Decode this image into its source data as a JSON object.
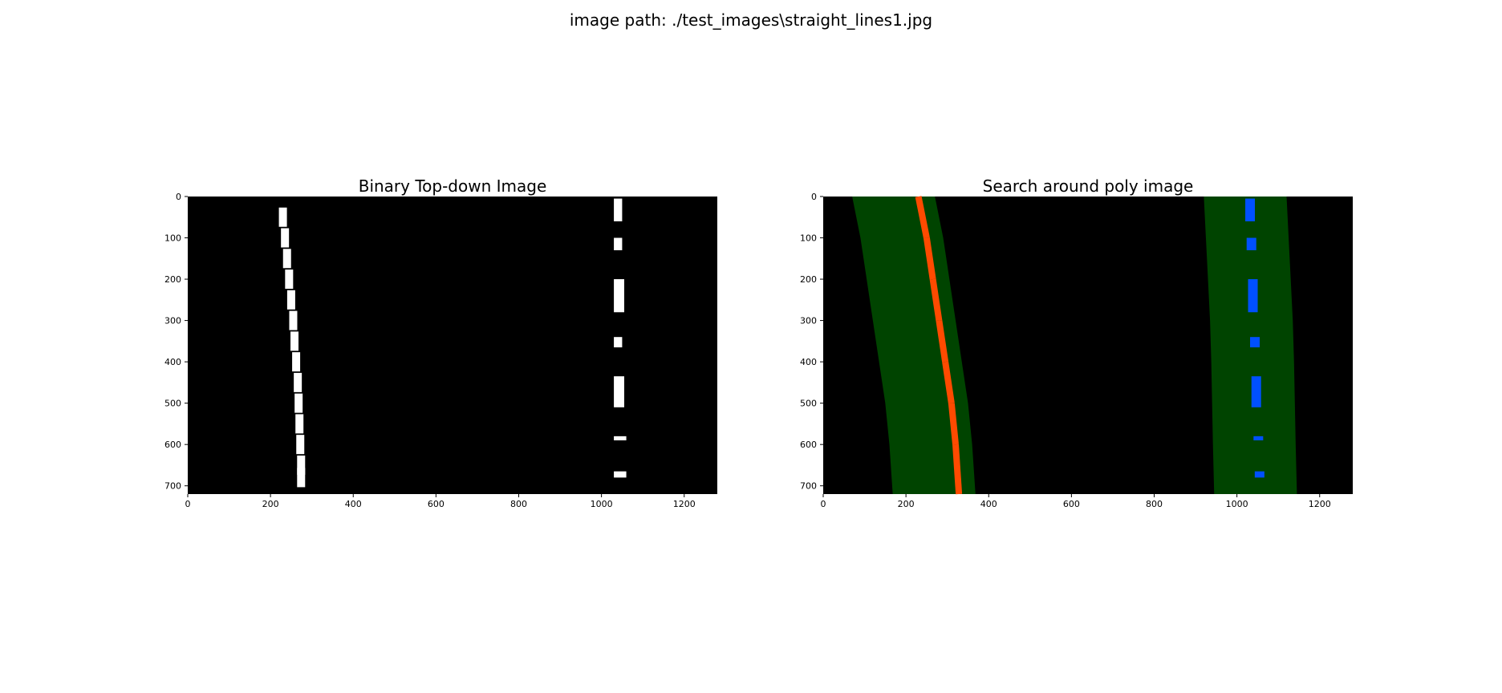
{
  "suptitle": "image path: ./test_images\\straight_lines1.jpg",
  "colors": {
    "background": "#ffffff",
    "panel": "#000000",
    "lane_pixels_binary": "#ffffff",
    "left_lane_pixels": "#ff4a00",
    "right_lane_pixels": "#0050ff",
    "search_window": "#004400"
  },
  "chart_data": [
    {
      "type": "image",
      "title": "Binary Top-down Image",
      "xlim": [
        0,
        1280
      ],
      "ylim": [
        720,
        0
      ],
      "xticks": [
        0,
        200,
        400,
        600,
        800,
        1000,
        1200
      ],
      "yticks": [
        0,
        100,
        200,
        300,
        400,
        500,
        600,
        700
      ],
      "left_lane_points": [
        [
          230,
          50
        ],
        [
          235,
          100
        ],
        [
          240,
          150
        ],
        [
          245,
          200
        ],
        [
          250,
          250
        ],
        [
          255,
          300
        ],
        [
          258,
          350
        ],
        [
          262,
          400
        ],
        [
          266,
          450
        ],
        [
          268,
          500
        ],
        [
          270,
          550
        ],
        [
          272,
          600
        ],
        [
          274,
          650
        ],
        [
          274,
          680
        ]
      ],
      "right_lane_dashes": [
        [
          1030,
          5,
          1050,
          60
        ],
        [
          1030,
          100,
          1050,
          130
        ],
        [
          1030,
          200,
          1055,
          280
        ],
        [
          1030,
          340,
          1050,
          365
        ],
        [
          1030,
          435,
          1055,
          510
        ],
        [
          1030,
          580,
          1060,
          590
        ],
        [
          1030,
          665,
          1060,
          680
        ]
      ]
    },
    {
      "type": "image",
      "title": "Search around poly image",
      "xlim": [
        0,
        1280
      ],
      "ylim": [
        720,
        0
      ],
      "xticks": [
        0,
        200,
        400,
        600,
        800,
        1000,
        1200
      ],
      "yticks": [
        0,
        100,
        200,
        300,
        400,
        500,
        600,
        700
      ],
      "left_poly_fit": [
        [
          170,
          0
        ],
        [
          190,
          100
        ],
        [
          205,
          200
        ],
        [
          220,
          300
        ],
        [
          235,
          400
        ],
        [
          250,
          500
        ],
        [
          260,
          600
        ],
        [
          268,
          720
        ]
      ],
      "right_poly_fit": [
        [
          1020,
          0
        ],
        [
          1025,
          100
        ],
        [
          1030,
          200
        ],
        [
          1035,
          300
        ],
        [
          1038,
          400
        ],
        [
          1040,
          500
        ],
        [
          1042,
          600
        ],
        [
          1045,
          720
        ]
      ],
      "search_margin": 100
    }
  ]
}
